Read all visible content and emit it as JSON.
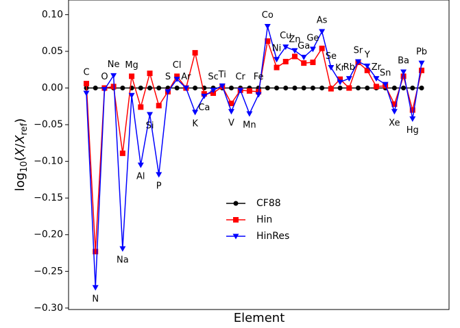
{
  "chart_data": {
    "type": "line",
    "xlabel": "Element",
    "ylabel": [
      "log",
      "10",
      "(",
      "X",
      "/",
      "X",
      "ref",
      ")"
    ],
    "categories": [
      "C",
      "N",
      "O",
      "Ne",
      "Na",
      "Mg",
      "Al",
      "Si",
      "P",
      "S",
      "Cl",
      "Ar",
      "K",
      "Ca",
      "Sc",
      "Ti",
      "V",
      "Cr",
      "Mn",
      "Fe",
      "Co",
      "Ni",
      "Cu",
      "Zn",
      "Ga",
      "Ge",
      "As",
      "Se",
      "Kr",
      "Rb",
      "Sr",
      "Y",
      "Zr",
      "Sn",
      "Xe",
      "Ba",
      "Hg",
      "Pb"
    ],
    "series": [
      {
        "name": "CF88",
        "color": "#000000",
        "marker": "circle",
        "values": [
          0,
          0,
          0,
          0,
          0,
          0,
          0,
          0,
          0,
          0,
          0,
          0,
          0,
          0,
          0,
          0,
          0,
          0,
          0,
          0,
          0,
          0,
          0,
          0,
          0,
          0,
          0,
          0,
          0,
          0,
          0,
          0,
          0,
          0,
          0,
          0,
          0,
          0
        ]
      },
      {
        "name": "Hin",
        "color": "#ff0000",
        "marker": "square",
        "values": [
          0.006,
          -0.223,
          0.0,
          0.002,
          -0.089,
          0.016,
          -0.026,
          0.02,
          -0.024,
          -0.005,
          0.016,
          0.0,
          0.048,
          -0.008,
          -0.007,
          0.002,
          -0.021,
          -0.003,
          -0.004,
          -0.005,
          0.064,
          0.028,
          0.036,
          0.043,
          0.034,
          0.035,
          0.054,
          -0.001,
          0.012,
          0.0,
          0.035,
          0.024,
          0.002,
          0.003,
          -0.022,
          0.016,
          -0.03,
          0.024
        ]
      },
      {
        "name": "HinRes",
        "color": "#0000ff",
        "marker": "triangle-down",
        "values": [
          -0.007,
          -0.272,
          -0.002,
          0.017,
          -0.219,
          -0.01,
          -0.105,
          -0.036,
          -0.118,
          -0.005,
          0.012,
          0.0,
          -0.033,
          -0.011,
          -0.003,
          0.003,
          -0.032,
          -0.003,
          -0.035,
          -0.009,
          0.084,
          0.039,
          0.056,
          0.051,
          0.042,
          0.053,
          0.077,
          0.028,
          0.008,
          0.013,
          0.036,
          0.03,
          0.013,
          0.005,
          -0.032,
          0.022,
          -0.042,
          0.034
        ]
      }
    ],
    "ylim": [
      -0.302,
      0.12
    ],
    "yticks": [
      {
        "value": 0.1,
        "label": "0.10"
      },
      {
        "value": 0.05,
        "label": "0.05"
      },
      {
        "value": 0.0,
        "label": "0.00"
      },
      {
        "value": -0.05,
        "label": "−0.05"
      },
      {
        "value": -0.1,
        "label": "−0.10"
      },
      {
        "value": -0.15,
        "label": "−0.15"
      },
      {
        "value": -0.2,
        "label": "−0.20"
      },
      {
        "value": -0.25,
        "label": "−0.25"
      },
      {
        "value": -0.3,
        "label": "−0.30"
      }
    ],
    "legend": "center"
  }
}
